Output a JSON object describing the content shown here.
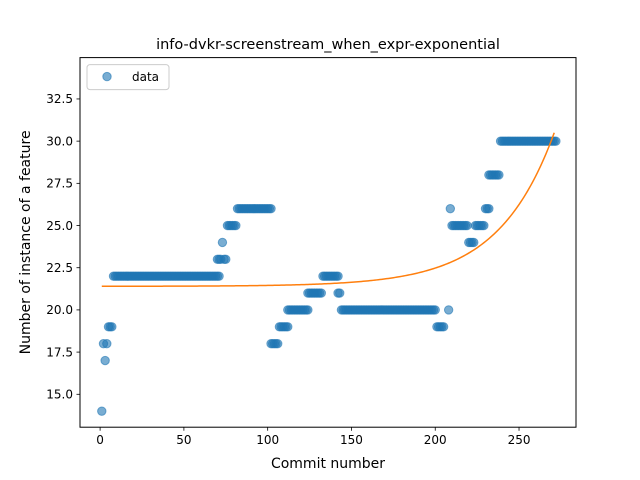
{
  "chart_data": {
    "type": "scatter",
    "title": "info-dvkr-screenstream_when_expr-exponential",
    "xlabel": "Commit number",
    "ylabel": "Number of instance of a feature",
    "xlim": [
      -12,
      284
    ],
    "ylim": [
      13.05,
      34.95
    ],
    "xticks": [
      0,
      50,
      100,
      150,
      200,
      250
    ],
    "yticks": [
      15.0,
      17.5,
      20.0,
      22.5,
      25.0,
      27.5,
      30.0,
      32.5
    ],
    "grid": false,
    "legend": {
      "placement": "top-left",
      "entries": [
        "data"
      ]
    },
    "colors": {
      "points": "#1f77b4",
      "fit": "#ff7f0e"
    },
    "series": [
      {
        "name": "data",
        "kind": "scatter",
        "runs": [
          [
            1,
            1,
            14
          ],
          [
            2,
            2,
            18
          ],
          [
            3,
            3,
            17
          ],
          [
            4,
            4,
            18
          ],
          [
            5,
            7,
            19
          ],
          [
            8,
            71,
            22
          ],
          [
            70,
            72,
            23
          ],
          [
            73,
            73,
            24
          ],
          [
            74,
            75,
            23
          ],
          [
            76,
            81,
            25
          ],
          [
            82,
            102,
            26
          ],
          [
            102,
            106,
            18
          ],
          [
            107,
            112,
            19
          ],
          [
            112,
            124,
            20
          ],
          [
            124,
            132,
            21
          ],
          [
            133,
            142,
            22
          ],
          [
            142,
            143,
            21
          ],
          [
            144,
            200,
            20
          ],
          [
            201,
            205,
            19
          ],
          [
            208,
            208,
            20
          ],
          [
            209,
            209,
            26
          ],
          [
            210,
            219,
            25
          ],
          [
            220,
            223,
            24
          ],
          [
            224,
            229,
            25
          ],
          [
            230,
            232,
            26
          ],
          [
            232,
            238,
            28
          ],
          [
            239,
            272,
            30
          ]
        ]
      },
      {
        "kind": "line",
        "fit": {
          "a": 21.4,
          "b": 0.00268,
          "c": 0.03,
          "x_start": 1,
          "x_end": 271
        }
      }
    ]
  }
}
